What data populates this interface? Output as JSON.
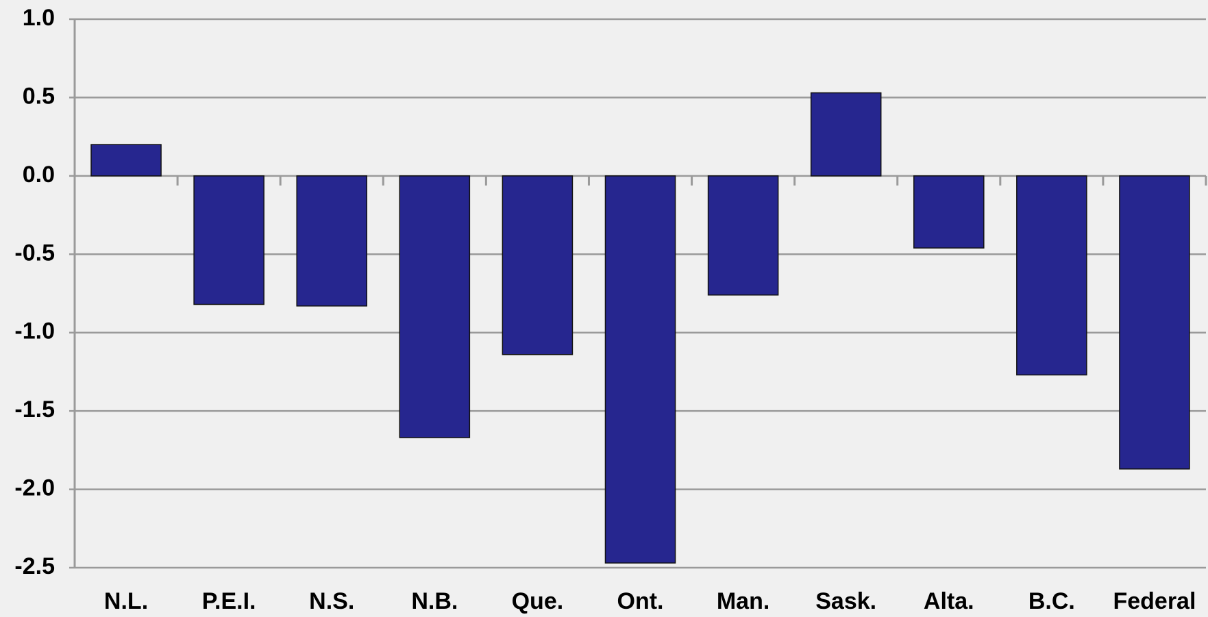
{
  "chart_data": {
    "type": "bar",
    "categories": [
      "N.L.",
      "P.E.I.",
      "N.S.",
      "N.B.",
      "Que.",
      "Ont.",
      "Man.",
      "Sask.",
      "Alta.",
      "B.C.",
      "Federal"
    ],
    "values": [
      0.2,
      -0.82,
      -0.83,
      -1.67,
      -1.14,
      -2.47,
      -0.76,
      0.53,
      -0.46,
      -1.27,
      -1.87
    ],
    "color": "#26268f",
    "ylim": [
      -2.5,
      1.0
    ],
    "yticks": [
      {
        "value": 1.0,
        "label": "1.0"
      },
      0.5,
      {
        "value": 0.0,
        "label": "0.0"
      },
      -0.5,
      {
        "value": -1.0,
        "label": "-1.0"
      },
      -1.5,
      {
        "value": -2.0,
        "label": "-2.0"
      },
      -2.5
    ],
    "grid": true
  }
}
